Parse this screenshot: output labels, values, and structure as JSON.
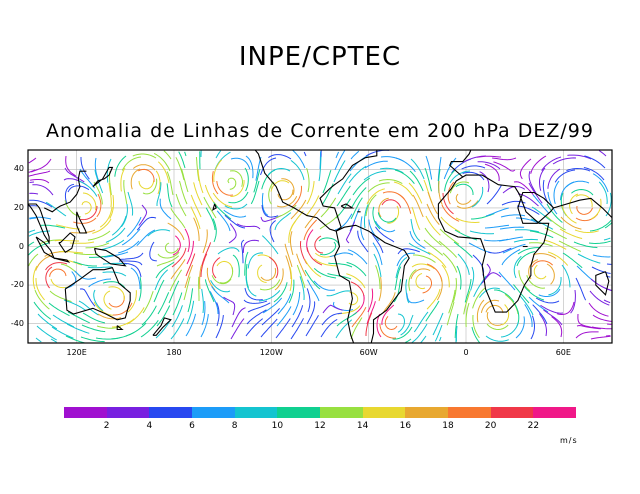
{
  "header": {
    "title": "INPE/CPTEC",
    "subtitle": "Anomalia de Linhas de Corrente em 200 hPa DEZ/99"
  },
  "map": {
    "lat_ticks": [
      {
        "value": 40,
        "label": "40"
      },
      {
        "value": 20,
        "label": "20"
      },
      {
        "value": 0,
        "label": "0"
      },
      {
        "value": -20,
        "label": "-20"
      },
      {
        "value": -40,
        "label": "-40"
      }
    ],
    "lon_ticks": [
      {
        "value": 120,
        "label": "120E"
      },
      {
        "value": 180,
        "label": "180"
      },
      {
        "value": 240,
        "label": "120W"
      },
      {
        "value": 300,
        "label": "60W"
      },
      {
        "value": 360,
        "label": "0"
      },
      {
        "value": 420,
        "label": "60E"
      }
    ],
    "lon_range": [
      90,
      450
    ],
    "lat_range": [
      -50,
      50
    ],
    "grid": true
  },
  "colorbar": {
    "colors": [
      "#a010d0",
      "#7820e0",
      "#2848f0",
      "#1c9cf8",
      "#14c4d0",
      "#10d090",
      "#98e040",
      "#e8d830",
      "#e8a830",
      "#f87830",
      "#f03848",
      "#f01888"
    ],
    "ticks": [
      "2",
      "4",
      "6",
      "8",
      "10",
      "12",
      "14",
      "16",
      "18",
      "20",
      "22"
    ],
    "units": "m/s"
  }
}
